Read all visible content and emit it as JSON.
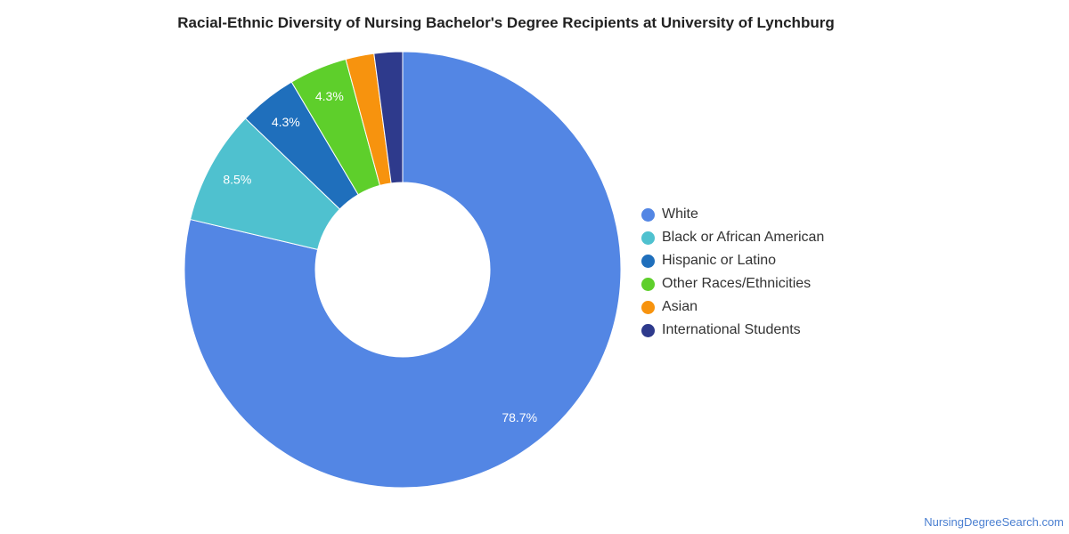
{
  "chart_data": {
    "type": "pie",
    "title": "Racial-Ethnic Diversity of Nursing Bachelor's Degree Recipients at University of Lynchburg",
    "donut": true,
    "legend_position": "right",
    "slices": [
      {
        "label": "White",
        "value": 78.7,
        "display": "78.7%",
        "color": "#5386e4"
      },
      {
        "label": "Black or African American",
        "value": 8.5,
        "display": "8.5%",
        "color": "#4fc1cf"
      },
      {
        "label": "Hispanic or Latino",
        "value": 4.3,
        "display": "4.3%",
        "color": "#1f6fbc"
      },
      {
        "label": "Other Races/Ethnicities",
        "value": 4.3,
        "display": "4.3%",
        "color": "#5ecf2b"
      },
      {
        "label": "Asian",
        "value": 2.1,
        "display": "",
        "color": "#f7930e"
      },
      {
        "label": "International Students",
        "value": 2.1,
        "display": "",
        "color": "#2e3a8c"
      }
    ]
  },
  "footer": {
    "source": "NursingDegreeSearch.com"
  }
}
